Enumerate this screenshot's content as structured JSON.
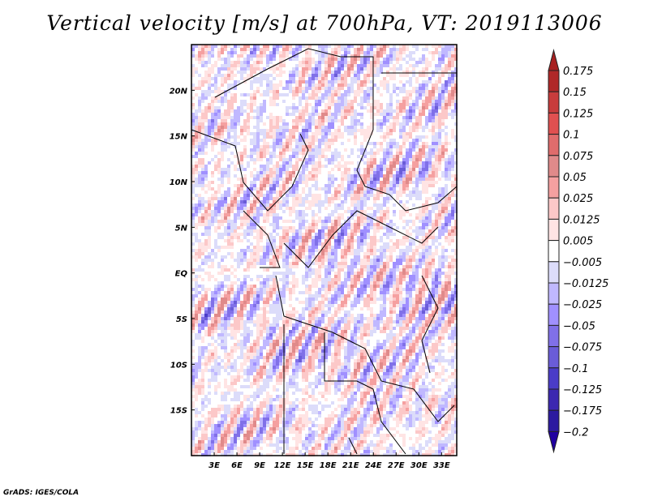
{
  "title": "Vertical velocity [m/s] at 700hPa, VT: 2019113006",
  "credit": "GrADS: IGES/COLA",
  "chart_data": {
    "type": "heatmap",
    "title": "Vertical velocity [m/s] at 700hPa, VT: 2019113006",
    "variable": "Vertical velocity",
    "units": "m/s",
    "level": "700hPa",
    "valid_time": "2019113006",
    "xlim": [
      0,
      35
    ],
    "ylim": [
      -20,
      25
    ],
    "x_ticks": [
      {
        "value": 3,
        "label": "3E"
      },
      {
        "value": 6,
        "label": "6E"
      },
      {
        "value": 9,
        "label": "9E"
      },
      {
        "value": 12,
        "label": "12E"
      },
      {
        "value": 15,
        "label": "15E"
      },
      {
        "value": 18,
        "label": "18E"
      },
      {
        "value": 21,
        "label": "21E"
      },
      {
        "value": 24,
        "label": "24E"
      },
      {
        "value": 27,
        "label": "27E"
      },
      {
        "value": 30,
        "label": "30E"
      },
      {
        "value": 33,
        "label": "33E"
      }
    ],
    "y_ticks": [
      {
        "value": 20,
        "label": "20N"
      },
      {
        "value": 15,
        "label": "15N"
      },
      {
        "value": 10,
        "label": "10N"
      },
      {
        "value": 5,
        "label": "5N"
      },
      {
        "value": 0,
        "label": "EQ"
      },
      {
        "value": -5,
        "label": "5S"
      },
      {
        "value": -10,
        "label": "10S"
      },
      {
        "value": -15,
        "label": "15S"
      }
    ],
    "colorbar": {
      "labels": [
        "0.175",
        "0.15",
        "0.125",
        "0.1",
        "0.075",
        "0.05",
        "0.025",
        "0.0125",
        "0.005",
        "−0.005",
        "−0.0125",
        "−0.025",
        "−0.05",
        "−0.075",
        "−0.1",
        "−0.125",
        "−0.175",
        "−0.2"
      ],
      "colors": [
        "#b02828",
        "#c83c3c",
        "#e05050",
        "#e06c6c",
        "#e08a8a",
        "#f5a0a0",
        "#fcc8c8",
        "#ffe4e4",
        "#ffffff",
        "#dcdcfa",
        "#c0b8ff",
        "#a090ff",
        "#8070e8",
        "#6a5cd8",
        "#4a3cc8",
        "#3c28b0",
        "#2c1aa0"
      ],
      "over_color": "#a82020",
      "under_color": "#2000a0"
    }
  }
}
